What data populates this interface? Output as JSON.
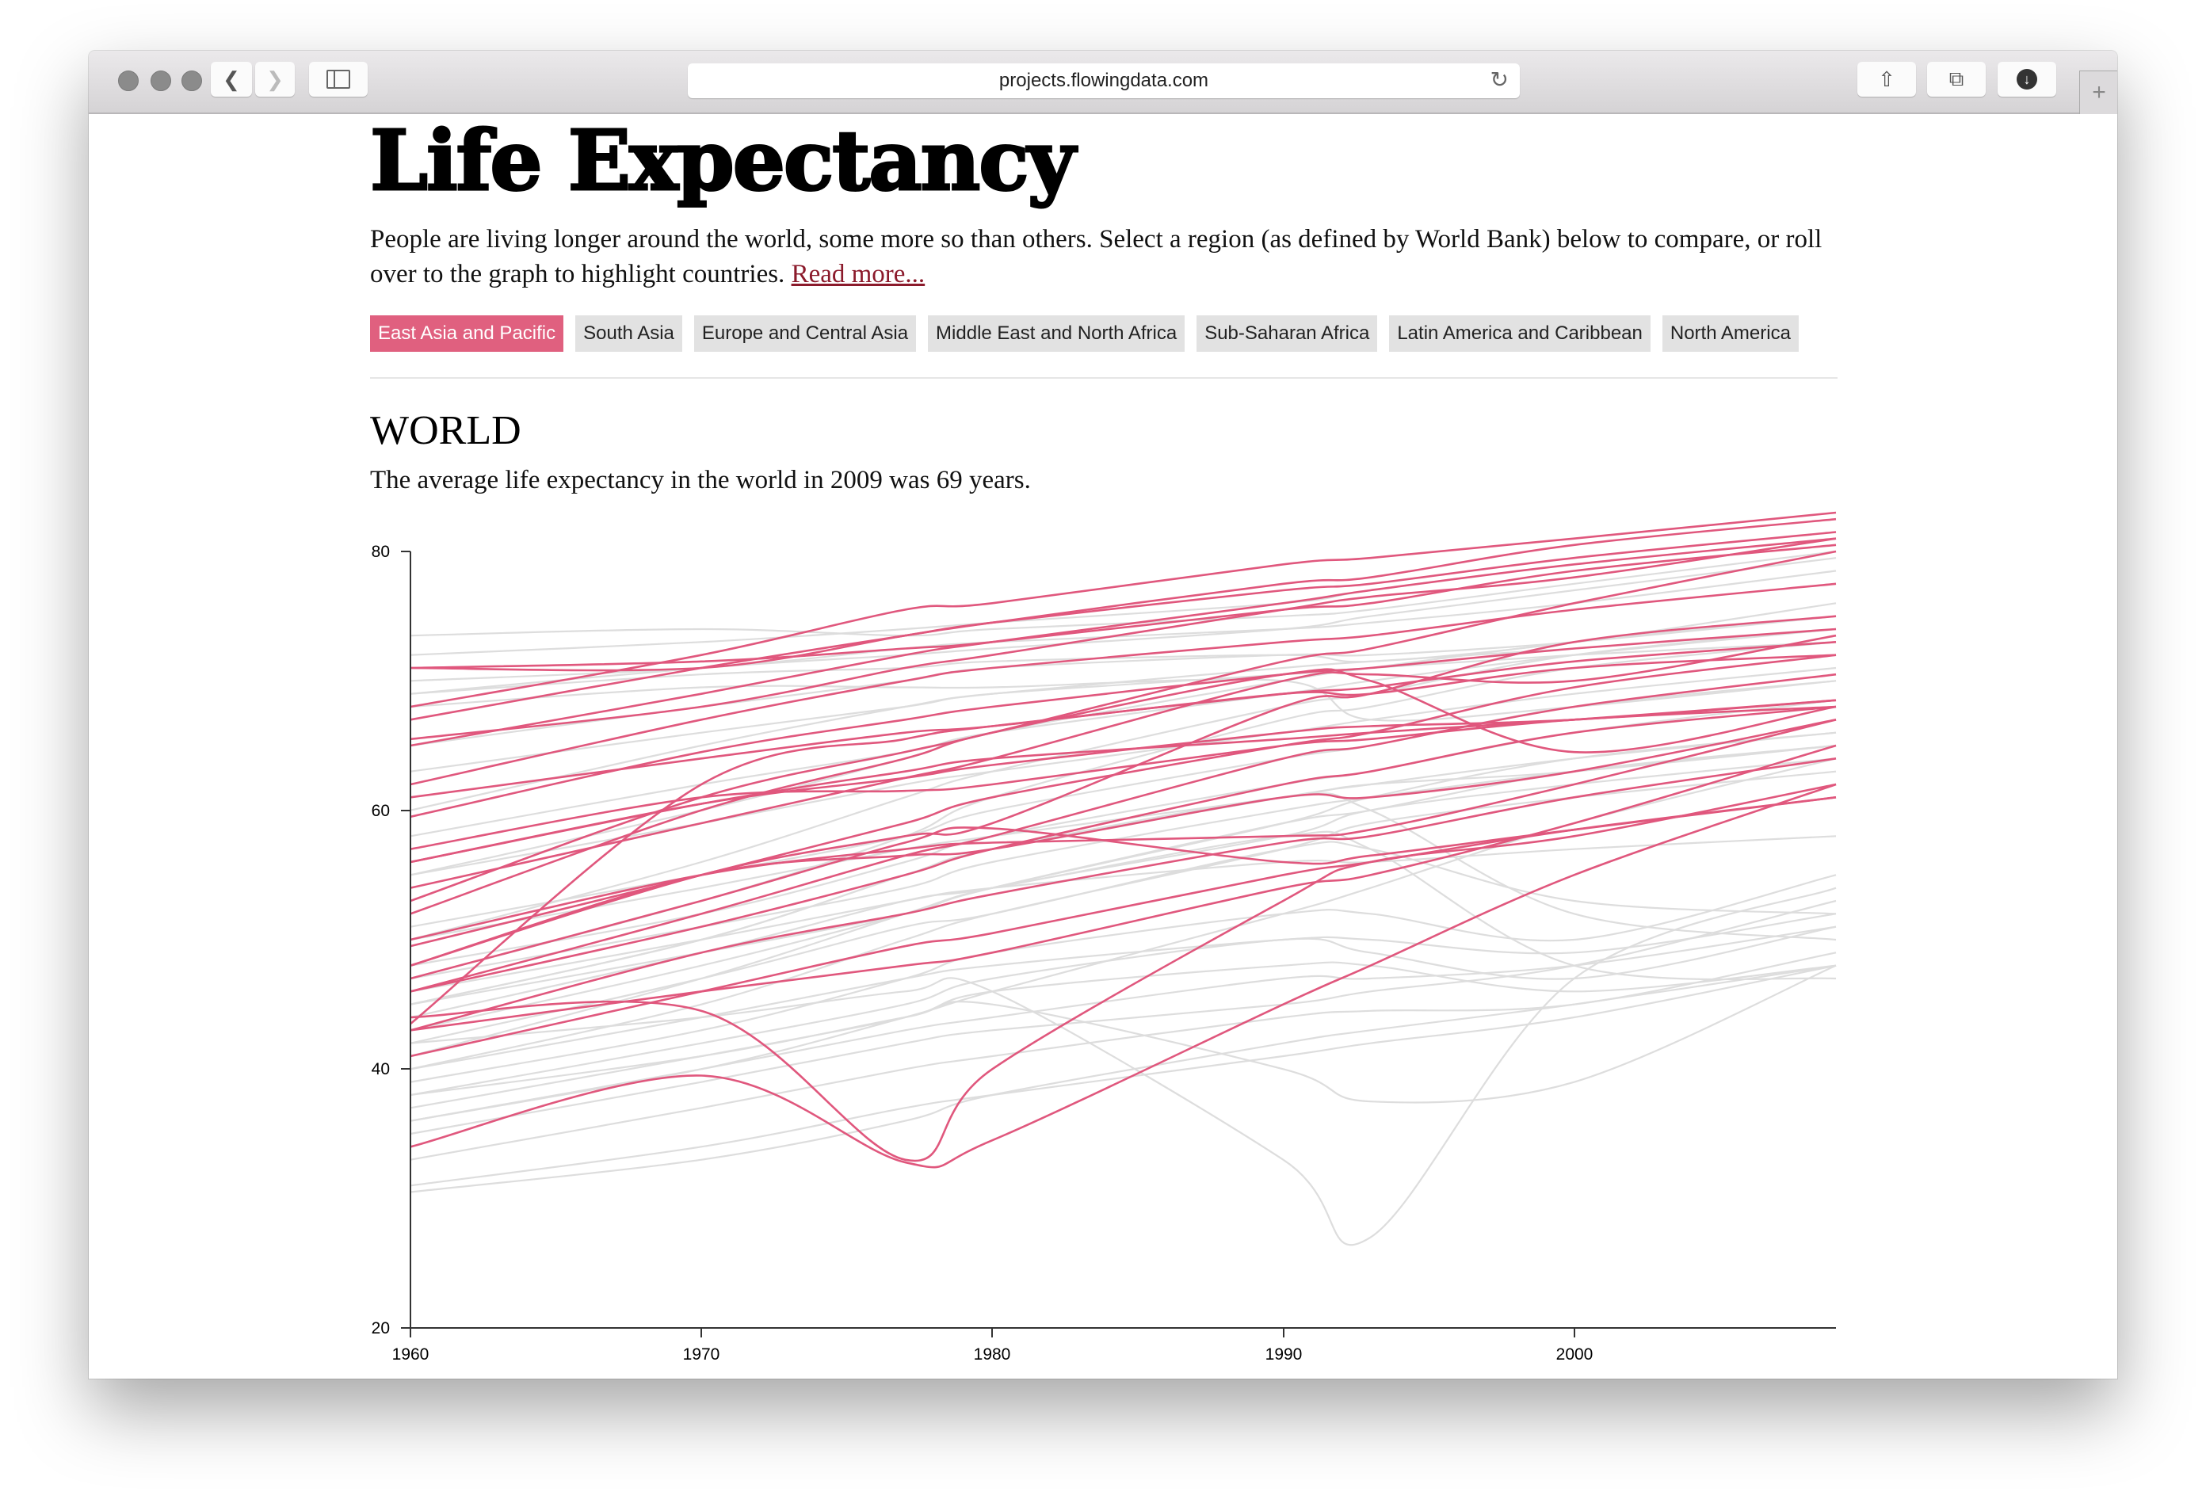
{
  "browser": {
    "url": "projects.flowingdata.com",
    "icons": [
      "back-icon",
      "forward-icon",
      "sidebar-icon",
      "reload-icon",
      "share-icon",
      "tabs-icon",
      "download-icon",
      "new-tab-icon"
    ]
  },
  "page": {
    "title": "Life Expectancy",
    "intro": "People are living longer around the world, some more so than others. Select a region (as defined by World Bank) below to compare, or roll over to the graph to highlight countries.",
    "read_more": "Read more...",
    "regions": [
      {
        "label": "East Asia and Pacific",
        "active": true
      },
      {
        "label": "South Asia",
        "active": false
      },
      {
        "label": "Europe and Central Asia",
        "active": false
      },
      {
        "label": "Middle East and North Africa",
        "active": false
      },
      {
        "label": "Sub-Saharan Africa",
        "active": false
      },
      {
        "label": "Latin America and Caribbean",
        "active": false
      },
      {
        "label": "North America",
        "active": false
      }
    ],
    "section_title": "WORLD",
    "section_subtitle": "The average life expectancy in the world in 2009 was 69 years."
  },
  "colors": {
    "highlight": "#e0577d",
    "other": "#dddddd",
    "active_button": "#e0607f"
  },
  "chart_data": {
    "type": "line",
    "xlim": [
      1960,
      2009
    ],
    "ylim": [
      20,
      80
    ],
    "x_ticks": [
      "1960",
      "1970",
      "1980",
      "1990",
      "2000"
    ],
    "y_ticks": [
      "20",
      "40",
      "60",
      "80"
    ],
    "grid": false,
    "x": [
      1960,
      1970,
      1977,
      1980,
      1990,
      1993,
      2000,
      2009
    ],
    "highlighted_series": [
      [
        68,
        72,
        75.5,
        76,
        79,
        79.5,
        81,
        83
      ],
      [
        67,
        71,
        73.5,
        74.5,
        77.5,
        78,
        80.5,
        82.5
      ],
      [
        65,
        69,
        72,
        73,
        76,
        77,
        79,
        81
      ],
      [
        71,
        71,
        73.5,
        74.5,
        77,
        77.5,
        79.5,
        81.5
      ],
      [
        71,
        71.5,
        72.5,
        73,
        75.5,
        76,
        78.5,
        80.5
      ],
      [
        65.5,
        68,
        71,
        72,
        75.5,
        76.5,
        78,
        81
      ],
      [
        53,
        61,
        64.5,
        66,
        71.5,
        72.5,
        76,
        80
      ],
      [
        62,
        67,
        70,
        71,
        73,
        73.5,
        75.5,
        77.5
      ],
      [
        59.5,
        64.5,
        67,
        68,
        70.5,
        71,
        72.5,
        74
      ],
      [
        54,
        59,
        62.5,
        64,
        70,
        70.5,
        70,
        73.5
      ],
      [
        43.5,
        62,
        65.5,
        66.5,
        69,
        69.5,
        71.5,
        73
      ],
      [
        48,
        55,
        58,
        59,
        68,
        69,
        73,
        75
      ],
      [
        57,
        61,
        61.5,
        62,
        65,
        65.5,
        67,
        68
      ],
      [
        46,
        51,
        55,
        57,
        62,
        63,
        66,
        68
      ],
      [
        48,
        55,
        56.5,
        57,
        61,
        61,
        63,
        67
      ],
      [
        56,
        60.5,
        62.5,
        63.5,
        66,
        66.5,
        67,
        68.5
      ],
      [
        52,
        60,
        64,
        66,
        70.5,
        70,
        64.5,
        68
      ],
      [
        44,
        44.5,
        33,
        40,
        53,
        56,
        58,
        62
      ],
      [
        34,
        39.5,
        32.8,
        34.5,
        45,
        48,
        55,
        62
      ],
      [
        43,
        46,
        48,
        49,
        54,
        55,
        59,
        65
      ],
      [
        41,
        46,
        49.5,
        50.5,
        55,
        56,
        58.5,
        61
      ],
      [
        43,
        49,
        52,
        53.5,
        57.5,
        58,
        61,
        64
      ],
      [
        50,
        55,
        57,
        57.5,
        58,
        58.5,
        62,
        67
      ],
      [
        46,
        52,
        56.5,
        58,
        64,
        65,
        68,
        70.5
      ],
      [
        49.5,
        55,
        59,
        61,
        65,
        66,
        69.5,
        72
      ],
      [
        61,
        64,
        66,
        66.5,
        69,
        69,
        71,
        72
      ],
      [
        47,
        53,
        57.5,
        58.6,
        56,
        56.5,
        58.5,
        61
      ],
      [
        56,
        60.5,
        63,
        64,
        65.5,
        66,
        67,
        68.5
      ]
    ],
    "other_series": [
      [
        42,
        44,
        46,
        46,
        33,
        27,
        47,
        54
      ],
      [
        38,
        41,
        44,
        45,
        40,
        37.5,
        39,
        48
      ],
      [
        73.5,
        74,
        73.5,
        74,
        75,
        75.5,
        77.5,
        80
      ],
      [
        72,
        73,
        74,
        74.5,
        76,
        77,
        79,
        81
      ],
      [
        69,
        71,
        72,
        72.5,
        74,
        75,
        77,
        79.5
      ],
      [
        68,
        69.5,
        69.5,
        69.5,
        70,
        67,
        68,
        70
      ],
      [
        70,
        71,
        72.5,
        73,
        74,
        74.5,
        76,
        78.5
      ],
      [
        65,
        68,
        70,
        71,
        72,
        72,
        73,
        75
      ],
      [
        60,
        65,
        68,
        69,
        71,
        71.5,
        72.5,
        74
      ],
      [
        58,
        62,
        64.5,
        66,
        69,
        70,
        72,
        74
      ],
      [
        55,
        59,
        62,
        63,
        66,
        67,
        69,
        71
      ],
      [
        51,
        55,
        58,
        60,
        64,
        65,
        68,
        70
      ],
      [
        48,
        52,
        56,
        58,
        62,
        63,
        66,
        68.5
      ],
      [
        47,
        51,
        54,
        56,
        60,
        61,
        63,
        65
      ],
      [
        40,
        44,
        47,
        48,
        50,
        50,
        49,
        52
      ],
      [
        38,
        42,
        45,
        47,
        50,
        49,
        47,
        51
      ],
      [
        36,
        40,
        43,
        44,
        47,
        47,
        48,
        51
      ],
      [
        33,
        37,
        40,
        41,
        44,
        44.5,
        45,
        49
      ],
      [
        31,
        34,
        37,
        38,
        41,
        42,
        44,
        48
      ],
      [
        42,
        47,
        51,
        52,
        57,
        57,
        53,
        52
      ],
      [
        45,
        50,
        55,
        57,
        61,
        60,
        52,
        50
      ],
      [
        44,
        49,
        53,
        54,
        58,
        57,
        48,
        47
      ],
      [
        37,
        41,
        44,
        46,
        48,
        48,
        46,
        48
      ],
      [
        40,
        45,
        50,
        52,
        57,
        59,
        61,
        63
      ],
      [
        43,
        48,
        52,
        54,
        59,
        61,
        64,
        66
      ],
      [
        35,
        39,
        42,
        43,
        45,
        46,
        48,
        53
      ],
      [
        30.5,
        33,
        36,
        38,
        42,
        43,
        45,
        48
      ],
      [
        39,
        43,
        47,
        49,
        52,
        52,
        50,
        55
      ],
      [
        46,
        50,
        53,
        54,
        56,
        56,
        57,
        58
      ],
      [
        50,
        54,
        57,
        58,
        61,
        62,
        63,
        65
      ],
      [
        41,
        47,
        52,
        54,
        59,
        60,
        63,
        65
      ],
      [
        36,
        40,
        44,
        46,
        52,
        54,
        59,
        64
      ],
      [
        45,
        50,
        55,
        57,
        61,
        62,
        64,
        66
      ],
      [
        47,
        53,
        58,
        61,
        67,
        68,
        71,
        73
      ],
      [
        50,
        56,
        61,
        63,
        68,
        69,
        72,
        74
      ],
      [
        55,
        60,
        64,
        66,
        70,
        71,
        73,
        75
      ],
      [
        45,
        49,
        52,
        54,
        58,
        60,
        62,
        64
      ],
      [
        69,
        70.5,
        71,
        71.5,
        72,
        71.5,
        73,
        76
      ],
      [
        63,
        66,
        68,
        69,
        70.5,
        71,
        72,
        73
      ]
    ]
  }
}
